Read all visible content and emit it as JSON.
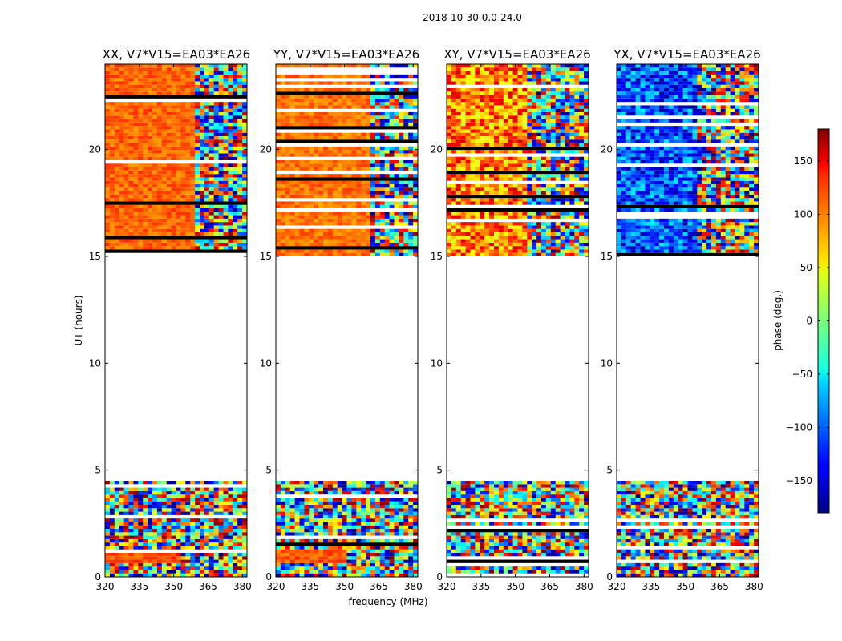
{
  "chart_data": {
    "type": "heatmap",
    "suptitle": "2018-10-30 0.0-24.0",
    "xlabel": "frequency (MHz)",
    "ylabel": "UT (hours)",
    "xlim": [
      320,
      382
    ],
    "ylim": [
      0,
      24
    ],
    "xticks": [
      320,
      335,
      350,
      365,
      380
    ],
    "xtick_labels": [
      "320",
      "335",
      "350",
      "365",
      "380"
    ],
    "yticks": [
      0,
      5,
      10,
      15,
      20
    ],
    "ytick_labels": [
      "0",
      "5",
      "10",
      "15",
      "20"
    ],
    "panels": [
      {
        "title": "XX, V7*V15=EA03*EA26",
        "base_phase": 100,
        "fringe_start_mhz": 360,
        "early_base_phase": 110
      },
      {
        "title": "YY, V7*V15=EA03*EA26",
        "base_phase": 95,
        "fringe_start_mhz": 362,
        "early_base_phase": 105
      },
      {
        "title": "XY, V7*V15=EA03*EA26",
        "base_phase": 90,
        "fringe_start_mhz": 355,
        "early_base_phase": null
      },
      {
        "title": "YX, V7*V15=EA03*EA26",
        "base_phase": -110,
        "fringe_start_mhz": 355,
        "early_base_phase": null
      }
    ],
    "data_coverage_hours": [
      [
        0,
        4.5
      ],
      [
        15,
        24
      ]
    ],
    "no_data_hours": [
      4.5,
      15
    ],
    "colorbar": {
      "label": "phase (deg.)",
      "colormap": "jet",
      "vmin": -180,
      "vmax": 180,
      "ticks": [
        150,
        100,
        50,
        0,
        -50,
        -100,
        -150
      ],
      "tick_labels": [
        "150",
        "100",
        "50",
        "0",
        "−50",
        "−100",
        "−150"
      ]
    }
  }
}
